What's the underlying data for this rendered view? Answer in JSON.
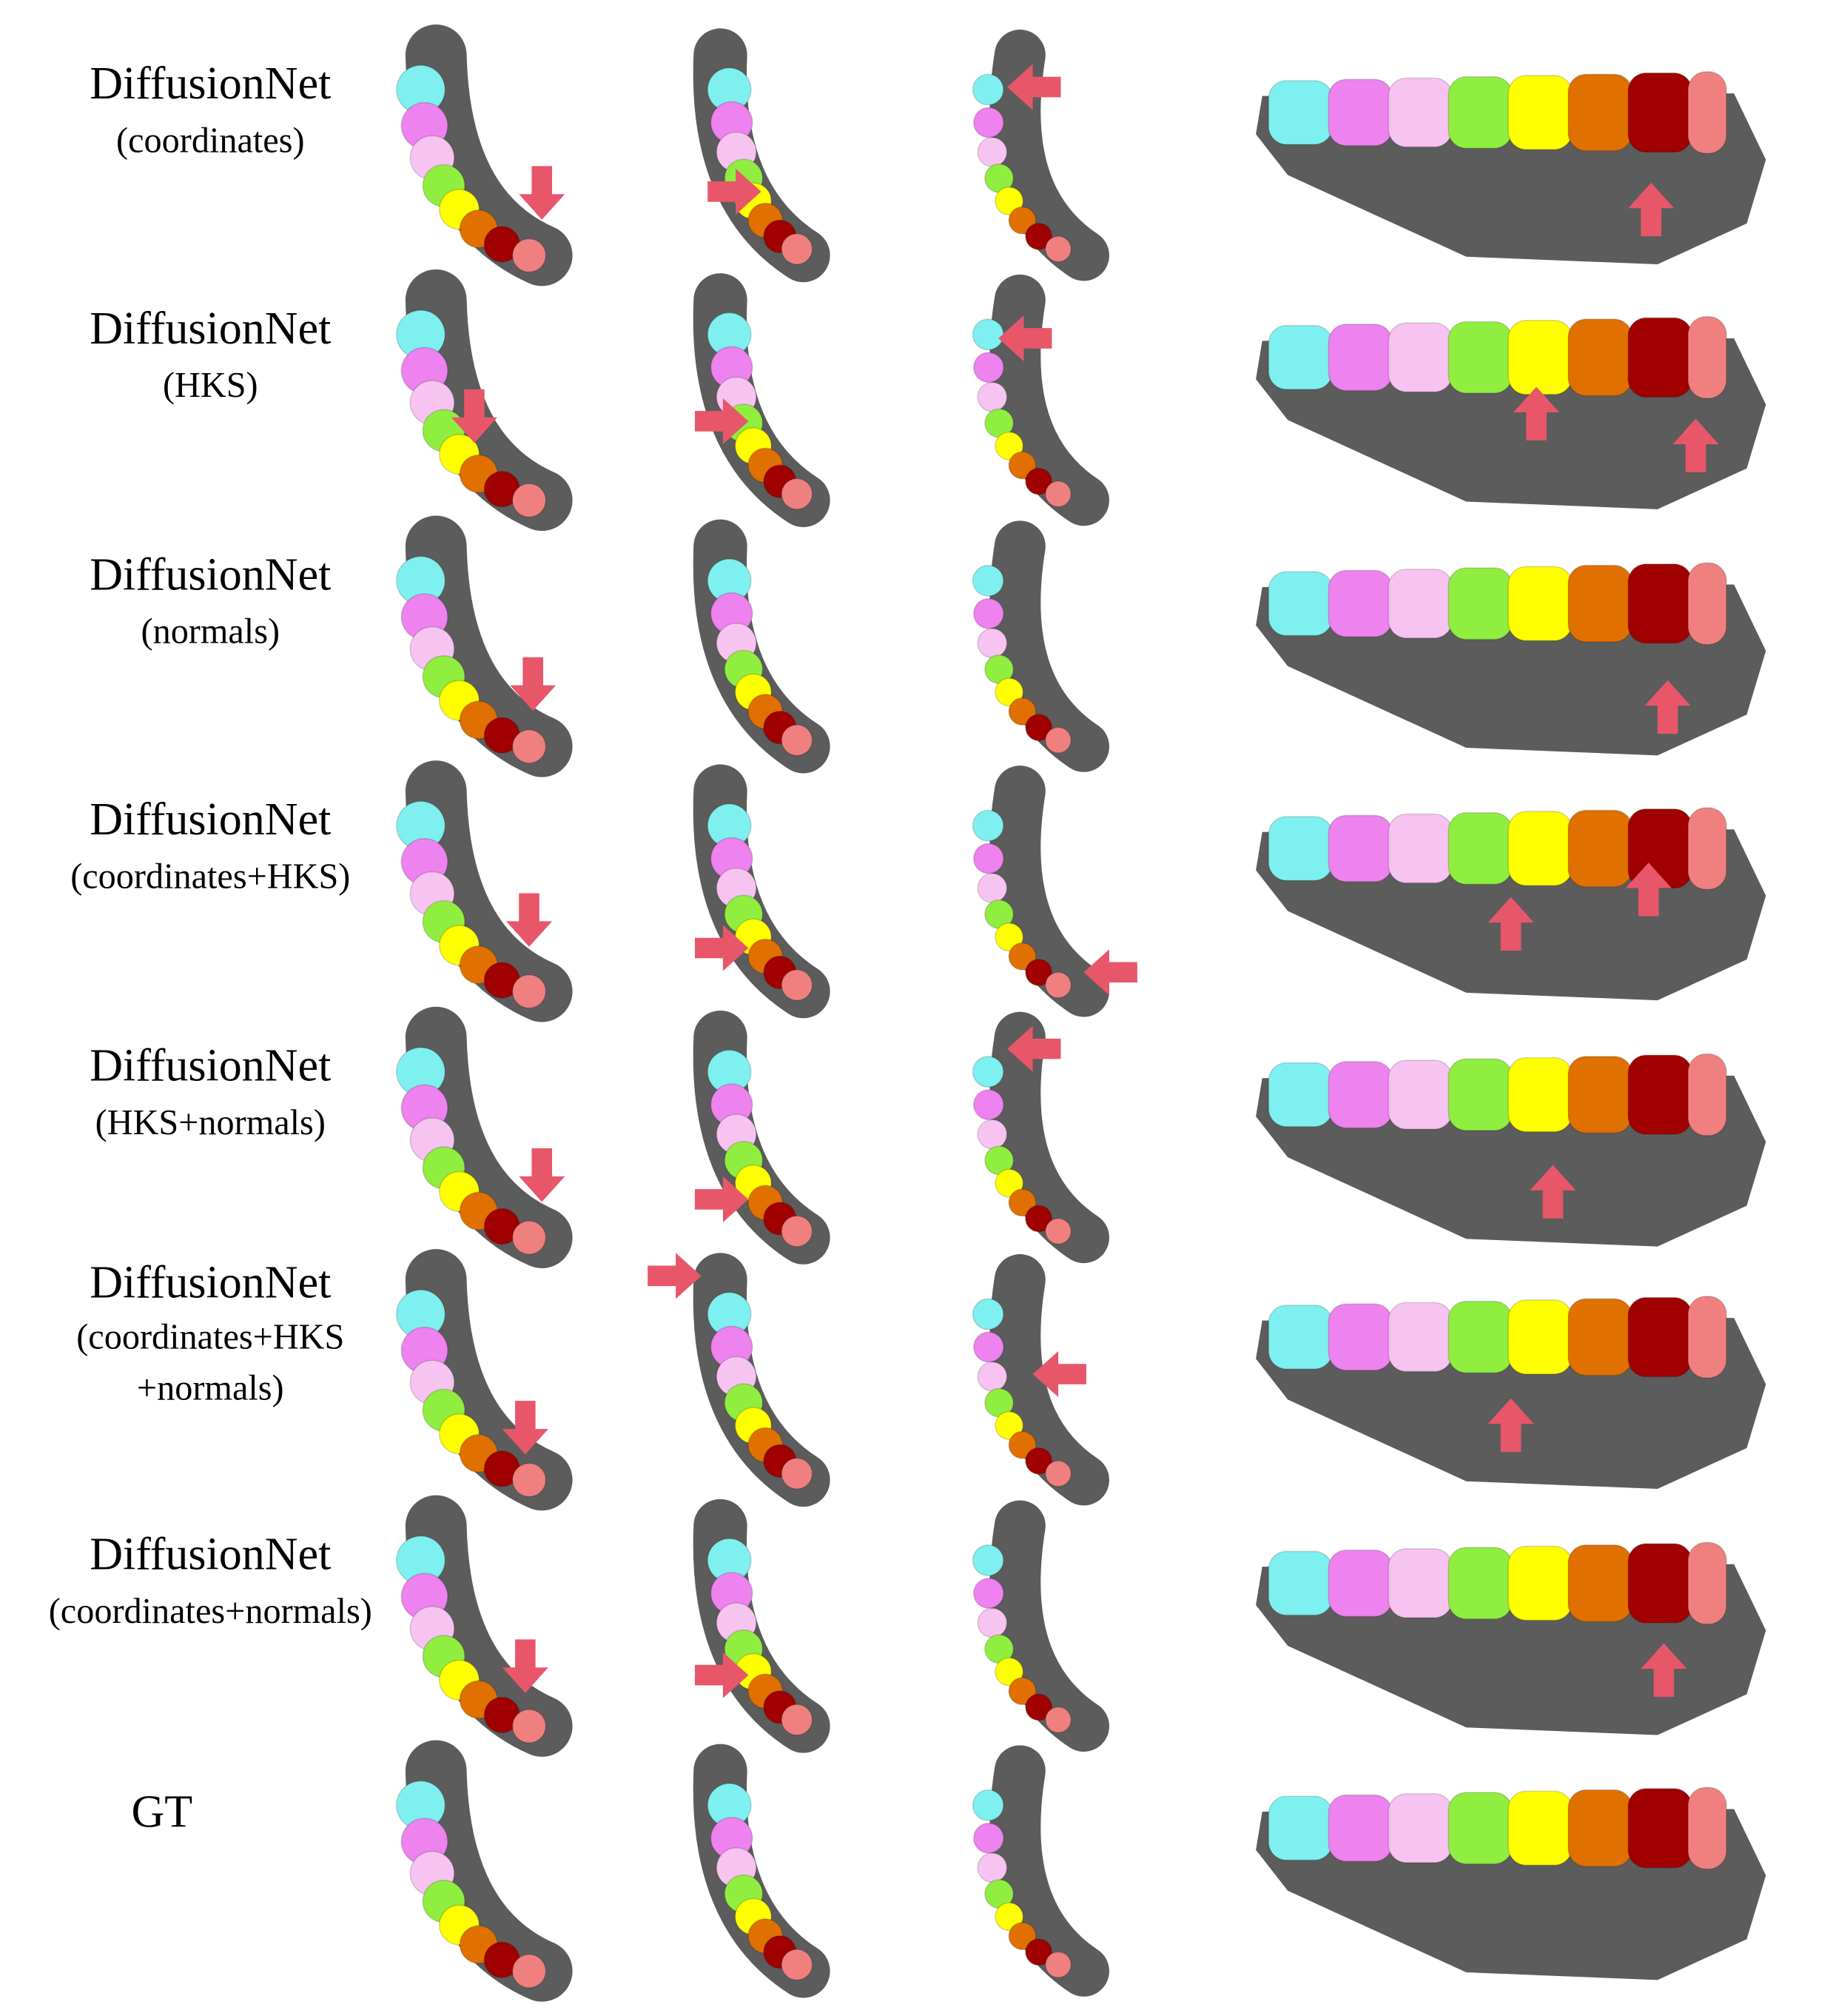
{
  "rows": [
    {
      "lines": [
        "DiffusionNet",
        "(coordinates)"
      ]
    },
    {
      "lines": [
        "DiffusionNet",
        "(HKS)"
      ]
    },
    {
      "lines": [
        "DiffusionNet",
        "(normals)"
      ]
    },
    {
      "lines": [
        "DiffusionNet",
        "(coordinates+HKS)"
      ]
    },
    {
      "lines": [
        "DiffusionNet",
        "(HKS+normals)"
      ]
    },
    {
      "lines": [
        "DiffusionNet",
        "(coordinates+HKS",
        "+normals)"
      ]
    },
    {
      "lines": [
        "DiffusionNet",
        "(coordinates+normals)"
      ]
    },
    {
      "lines": [
        "GT"
      ]
    }
  ]
}
